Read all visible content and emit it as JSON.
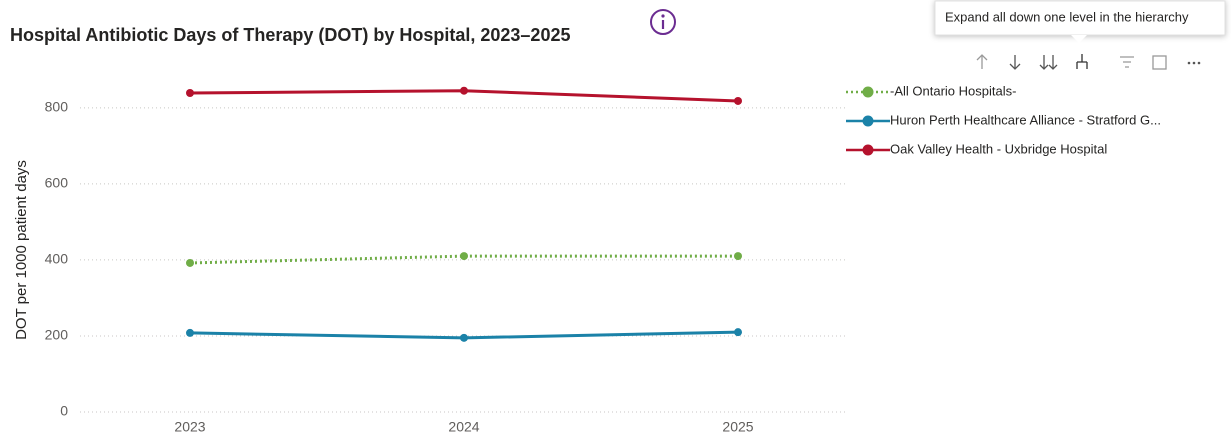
{
  "chart_data": {
    "type": "line",
    "title": "Hospital Antibiotic Days of Therapy (DOT) by Hospital, 2023–2025",
    "y_label": "DOT per 1000 patient days",
    "tooltip": "Expand all down one level in the hierarchy",
    "categories": [
      "2023",
      "2024",
      "2025"
    ],
    "series": [
      {
        "name": "-All Ontario Hospitals-",
        "color": "#70ad47",
        "line_style": "dotted",
        "values": [
          392,
          410,
          410
        ]
      },
      {
        "name": "Huron Perth Healthcare Alliance - Stratford G...",
        "color": "#1b82a8",
        "line_style": "solid",
        "values": [
          208,
          195,
          210
        ]
      },
      {
        "name": "Oak Valley Health - Uxbridge Hospital",
        "color": "#b5122d",
        "line_style": "solid",
        "values": [
          839,
          845,
          818
        ]
      }
    ],
    "ylim": [
      0,
      860
    ],
    "yticks": [
      0,
      200,
      400,
      600,
      800
    ],
    "grid": true,
    "legend": "right"
  }
}
